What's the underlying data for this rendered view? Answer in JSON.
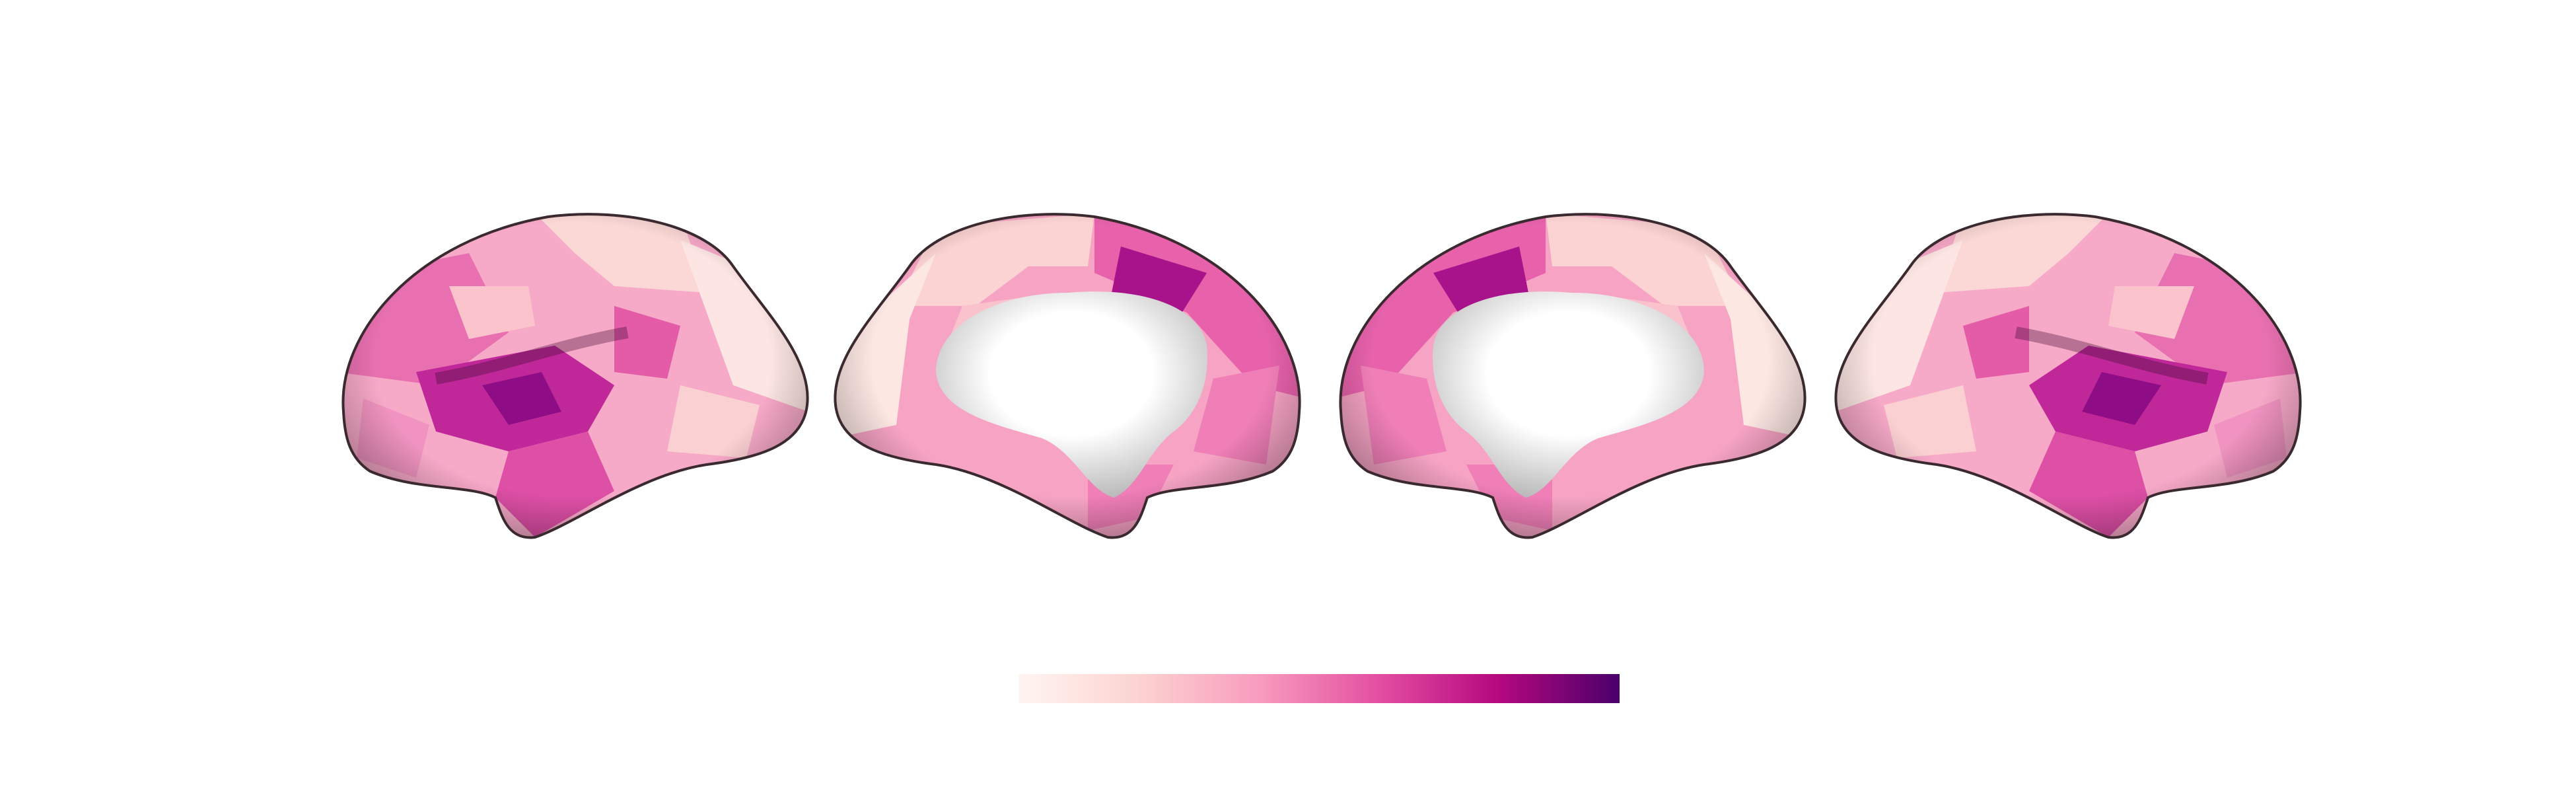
{
  "colorbar": {
    "colors": [
      "#fff5f2",
      "#fcd3d0",
      "#f89cbe",
      "#e34ea1",
      "#b4087f",
      "#4a006a"
    ]
  }
}
